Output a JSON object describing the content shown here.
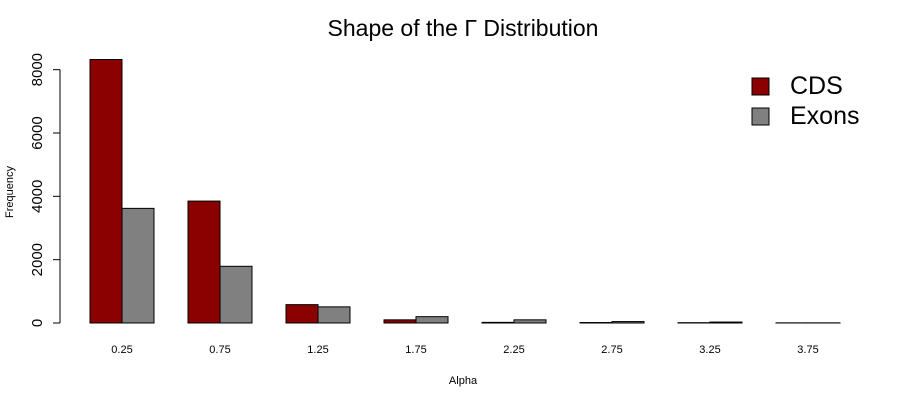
{
  "chart_data": {
    "type": "bar",
    "title": "Shape of the Γ Distribution",
    "xlabel": "Alpha",
    "ylabel": "Frequency",
    "categories": [
      "0.25",
      "0.75",
      "1.25",
      "1.75",
      "2.25",
      "2.75",
      "3.25",
      "3.75"
    ],
    "series": [
      {
        "name": "CDS",
        "color": "#8b0000",
        "values": [
          8320,
          3850,
          580,
          100,
          20,
          15,
          10,
          5
        ]
      },
      {
        "name": "Exons",
        "color": "#808080",
        "values": [
          3620,
          1790,
          510,
          200,
          100,
          45,
          30,
          5
        ]
      }
    ],
    "yticks": [
      0,
      2000,
      4000,
      6000,
      8000
    ],
    "ylim": [
      0,
      8400
    ],
    "grid": false,
    "legend_position": "top-right"
  }
}
